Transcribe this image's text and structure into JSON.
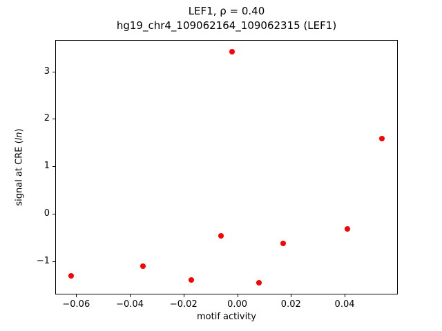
{
  "chart_data": {
    "type": "scatter",
    "title_line1": "LEF1, ρ = 0.40",
    "title_line2": "hg19_chr4_109062164_109062315 (LEF1)",
    "xlabel": "motif activity",
    "ylabel_prefix": "signal at CRE (",
    "ylabel_italic": "ln",
    "ylabel_suffix": ")",
    "marker_color": "#ff0000",
    "legend": "none",
    "grid": false,
    "xlim": [
      -0.0678,
      0.0598
    ],
    "ylim": [
      -1.69,
      3.66
    ],
    "xticks": [
      {
        "v": -0.06,
        "label": "−0.06"
      },
      {
        "v": -0.04,
        "label": "−0.04"
      },
      {
        "v": -0.02,
        "label": "−0.02"
      },
      {
        "v": 0.0,
        "label": "0.00"
      },
      {
        "v": 0.02,
        "label": "0.02"
      },
      {
        "v": 0.04,
        "label": "0.04"
      }
    ],
    "yticks": [
      {
        "v": -1,
        "label": "−1"
      },
      {
        "v": 0,
        "label": "0"
      },
      {
        "v": 1,
        "label": "1"
      },
      {
        "v": 2,
        "label": "2"
      },
      {
        "v": 3,
        "label": "3"
      }
    ],
    "points": [
      {
        "x": -0.062,
        "y": -1.3
      },
      {
        "x": -0.035,
        "y": -1.1
      },
      {
        "x": -0.017,
        "y": -1.39
      },
      {
        "x": -0.006,
        "y": -0.46
      },
      {
        "x": -0.002,
        "y": 3.42
      },
      {
        "x": 0.008,
        "y": -1.45
      },
      {
        "x": 0.017,
        "y": -0.62
      },
      {
        "x": 0.041,
        "y": -0.31
      },
      {
        "x": 0.054,
        "y": 1.58
      }
    ]
  }
}
